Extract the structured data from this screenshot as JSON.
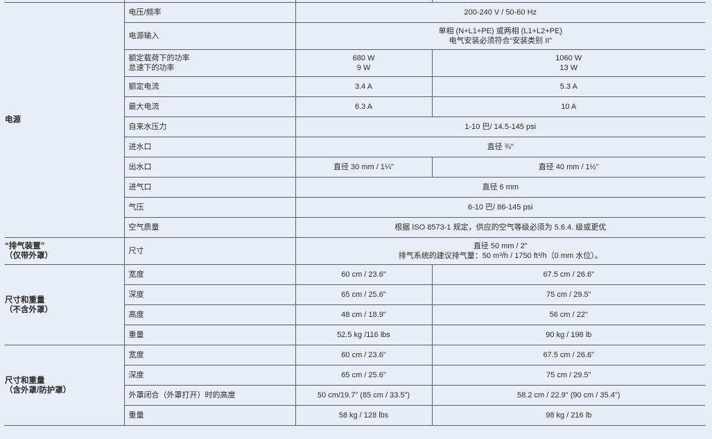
{
  "groups": [
    {
      "label": [
        "电源"
      ],
      "rows": [
        {
          "name": "电压/频率",
          "span": [
            "200-240 V / 50-60 Hz"
          ]
        },
        {
          "name": "电源输入",
          "span": [
            "单相 (N+L1+PE) 或两相 (L1+L2+PE)",
            "电气安装必须符合“安装类别 II”"
          ]
        },
        {
          "name": [
            "额定载荷下的功率",
            "怠速下的功率"
          ],
          "a": [
            "680 W",
            "9 W"
          ],
          "b": [
            "1060 W",
            "13 W"
          ]
        },
        {
          "name": "额定电流",
          "a": "3.4 A",
          "b": "5.3 A"
        },
        {
          "name": "最大电流",
          "a": "6.3 A",
          "b": "10 A"
        },
        {
          "name": "自来水压力",
          "span": [
            "1-10 巴/ 14.5-145 psi"
          ]
        },
        {
          "name": "进水口",
          "span": [
            "直径 ¾\""
          ]
        },
        {
          "name": "出水口",
          "a": "直径 30 mm / 1¼\"",
          "b": "直径 40 mm / 1½\""
        },
        {
          "name": "进气口",
          "span": [
            "直径 6 mm"
          ]
        },
        {
          "name": "气压",
          "span": [
            "6-10 巴/ 86-145 psi"
          ]
        },
        {
          "name": "空气质量",
          "span": [
            "根据 ISO 8573-1 规定，供应的空气等级必须为 5.6.4. 级或更优"
          ]
        }
      ]
    },
    {
      "label": [
        "“排气装置”",
        "（仅带外罩）"
      ],
      "rows": [
        {
          "name": "尺寸",
          "span": [
            "直径 50 mm / 2\"",
            "排气系统的建议排气量：50 m³/h / 1750 ft³/h（0 mm 水位）。"
          ]
        }
      ]
    },
    {
      "label": [
        "尺寸和重量",
        "（不含外罩）"
      ],
      "rows": [
        {
          "name": "宽度",
          "a": "60 cm / 23.6\"",
          "b": "67.5 cm / 26.6\""
        },
        {
          "name": "深度",
          "a": "65 cm / 25.6\"",
          "b": "75 cm / 29.5\""
        },
        {
          "name": "高度",
          "a": "48 cm / 18.9\"",
          "b": "56 cm / 22\""
        },
        {
          "name": "重量",
          "a": "52.5 kg /116 lbs",
          "b": "90 kg / 198 lb"
        }
      ]
    },
    {
      "label": [
        "尺寸和重量",
        "（含外罩/防护罩）"
      ],
      "rows": [
        {
          "name": "宽度",
          "a": "60 cm / 23.6\"",
          "b": "67.5 cm / 26.6\""
        },
        {
          "name": "深度",
          "a": "65 cm / 25.6\"",
          "b": "75 cm / 29.5\""
        },
        {
          "name": "外罩闭合（外罩打开）时的高度",
          "a": "50 cm/19.7\" (85 cm / 33.5\")",
          "b": "58.2 cm / 22.9\" (90 cm / 35.4\")"
        },
        {
          "name": "重量",
          "a": "58 kg / 128 lbs",
          "b": "98 kg / 216 lb"
        }
      ]
    }
  ]
}
